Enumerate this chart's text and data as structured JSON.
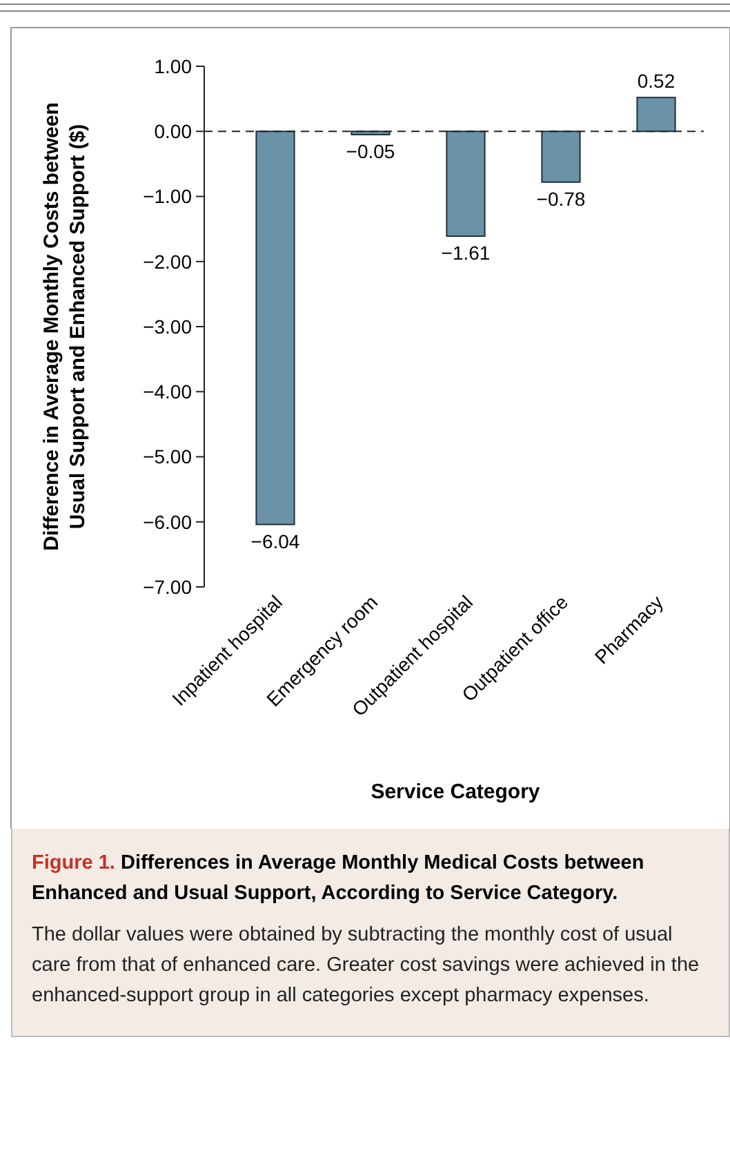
{
  "chart_data": {
    "type": "bar",
    "title": "Differences in Average Monthly Medical Costs between Enhanced and Usual Support, According to Service Category.",
    "xlabel": "Service Category",
    "ylabel": "Difference in Average Monthly Costs between\nUsual Support and Enhanced Support ($)",
    "categories": [
      "Inpatient hospital",
      "Emergency room",
      "Outpatient hospital",
      "Outpatient office",
      "Pharmacy"
    ],
    "values": [
      -6.04,
      -0.05,
      -1.61,
      -0.78,
      0.52
    ],
    "color": "#6b93a8",
    "data_labels": true,
    "ylim": [
      -7,
      1
    ],
    "yticks": [
      {
        "value": 1,
        "label": "1.00"
      },
      {
        "value": 0,
        "label": "0.00"
      },
      {
        "value": -1,
        "label": "−1.00"
      },
      {
        "value": -2,
        "label": "−2.00"
      },
      {
        "value": -3,
        "label": "−3.00"
      },
      {
        "value": -4,
        "label": "−4.00"
      },
      {
        "value": -5,
        "label": "−5.00"
      },
      {
        "value": -6,
        "label": "−6.00"
      },
      {
        "value": -7,
        "label": "−7.00"
      }
    ],
    "ref_lines": [
      {
        "axis": "y",
        "value": 0,
        "line_style": "dashed",
        "color": "#222222"
      }
    ],
    "annotations": [
      "Figure 1.",
      "The dollar values were obtained by subtracting the monthly cost of usual care from that of enhanced care. Greater cost savings were achieved in the enhanced-support group in all categories except pharmacy expenses."
    ]
  }
}
